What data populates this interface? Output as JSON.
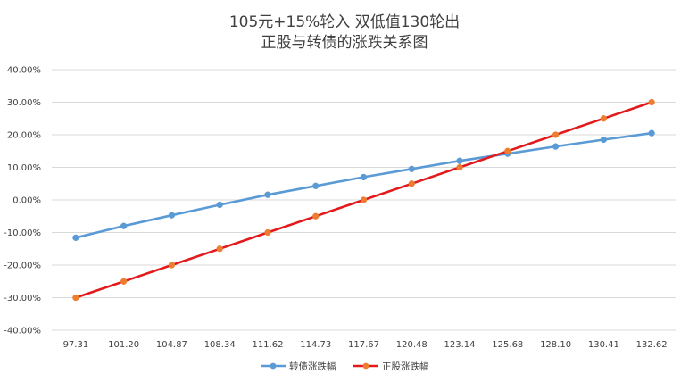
{
  "chart_data": {
    "type": "line",
    "title": [
      "105元+15%轮入 双低值130轮出",
      "正股与转债的涨跌关系图"
    ],
    "x": [
      "97.31",
      "101.20",
      "104.87",
      "108.34",
      "111.62",
      "114.73",
      "117.67",
      "120.48",
      "123.14",
      "125.68",
      "128.10",
      "130.41",
      "132.62"
    ],
    "yticks": [
      "40.00%",
      "30.00%",
      "20.00%",
      "10.00%",
      "0.00%",
      "-10.00%",
      "-20.00%",
      "-30.00%",
      "-40.00%"
    ],
    "ylim": [
      -40,
      40
    ],
    "y_unit": "%",
    "grid": true,
    "legend_position": "bottom",
    "series": [
      {
        "name": "转债涨跌幅",
        "color": "#5b9bd5",
        "values": [
          -11.6,
          -8.0,
          -4.7,
          -1.5,
          1.6,
          4.3,
          7.0,
          9.5,
          12.0,
          14.2,
          16.4,
          18.5,
          20.5
        ]
      },
      {
        "name": "正股涨跌幅",
        "color": "#e31a1c",
        "marker_color": "#ed7d31",
        "values": [
          -30.0,
          -25.0,
          -20.0,
          -15.0,
          -10.0,
          -5.0,
          0.0,
          5.0,
          10.0,
          15.0,
          20.0,
          25.0,
          30.0
        ]
      }
    ]
  }
}
